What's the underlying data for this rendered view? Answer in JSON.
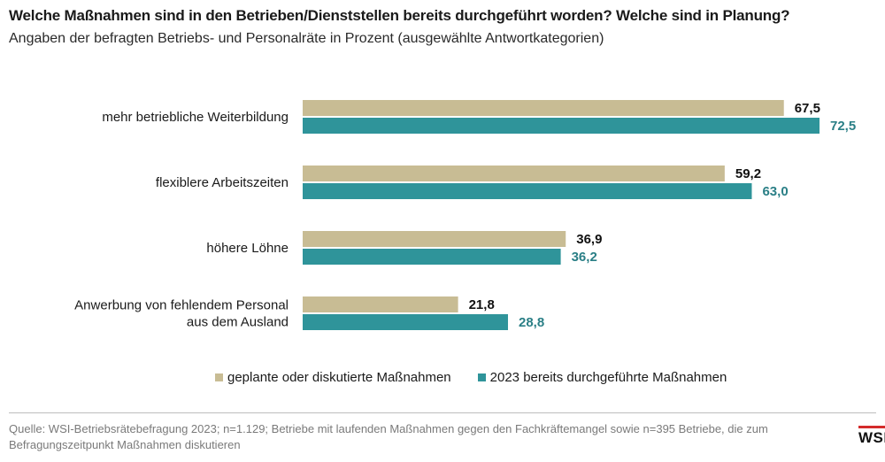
{
  "title": "Welche Maßnahmen sind in den Betrieben/Dienststellen bereits durchgeführt worden? Welche sind in Planung?",
  "subtitle": "Angaben der befragten Betriebs- und Personalräte in Prozent (ausgewählte Antwortkategorien)",
  "colors": {
    "planned": "#c8bc94",
    "done": "#2f949a",
    "planned_label": "#111111",
    "done_label": "#2a7f86"
  },
  "chart_data": {
    "type": "bar",
    "orientation": "horizontal",
    "categories": [
      [
        "mehr betriebliche Weiterbildung"
      ],
      [
        "flexiblere Arbeitszeiten"
      ],
      [
        "höhere Löhne"
      ],
      [
        "Anwerbung von fehlendem Personal",
        "aus dem Ausland"
      ]
    ],
    "series": [
      {
        "name": "geplante oder diskutierte Maßnahmen",
        "values": [
          67.5,
          59.2,
          36.9,
          21.8
        ],
        "labels": [
          "67,5",
          "59,2",
          "36,9",
          "21,8"
        ]
      },
      {
        "name": "2023 bereits durchgeführte Maßnahmen",
        "values": [
          72.5,
          63.0,
          36.2,
          28.8
        ],
        "labels": [
          "72,5",
          "63,0",
          "36,2",
          "28,8"
        ]
      }
    ],
    "xlim": [
      0,
      72.5
    ],
    "grid": false,
    "legend_position": "bottom"
  },
  "legend": {
    "planned": "geplante oder diskutierte Maßnahmen",
    "done": "2023 bereits durchgeführte Maßnahmen"
  },
  "source": "Quelle: WSI-Betriebsrätebefragung 2023; n=1.129; Betriebe mit laufenden Maßnahmen gegen den Fachkräftemangel sowie n=395 Betriebe, die zum Befragungszeitpunkt Maßnahmen diskutieren",
  "logo": "WSI"
}
